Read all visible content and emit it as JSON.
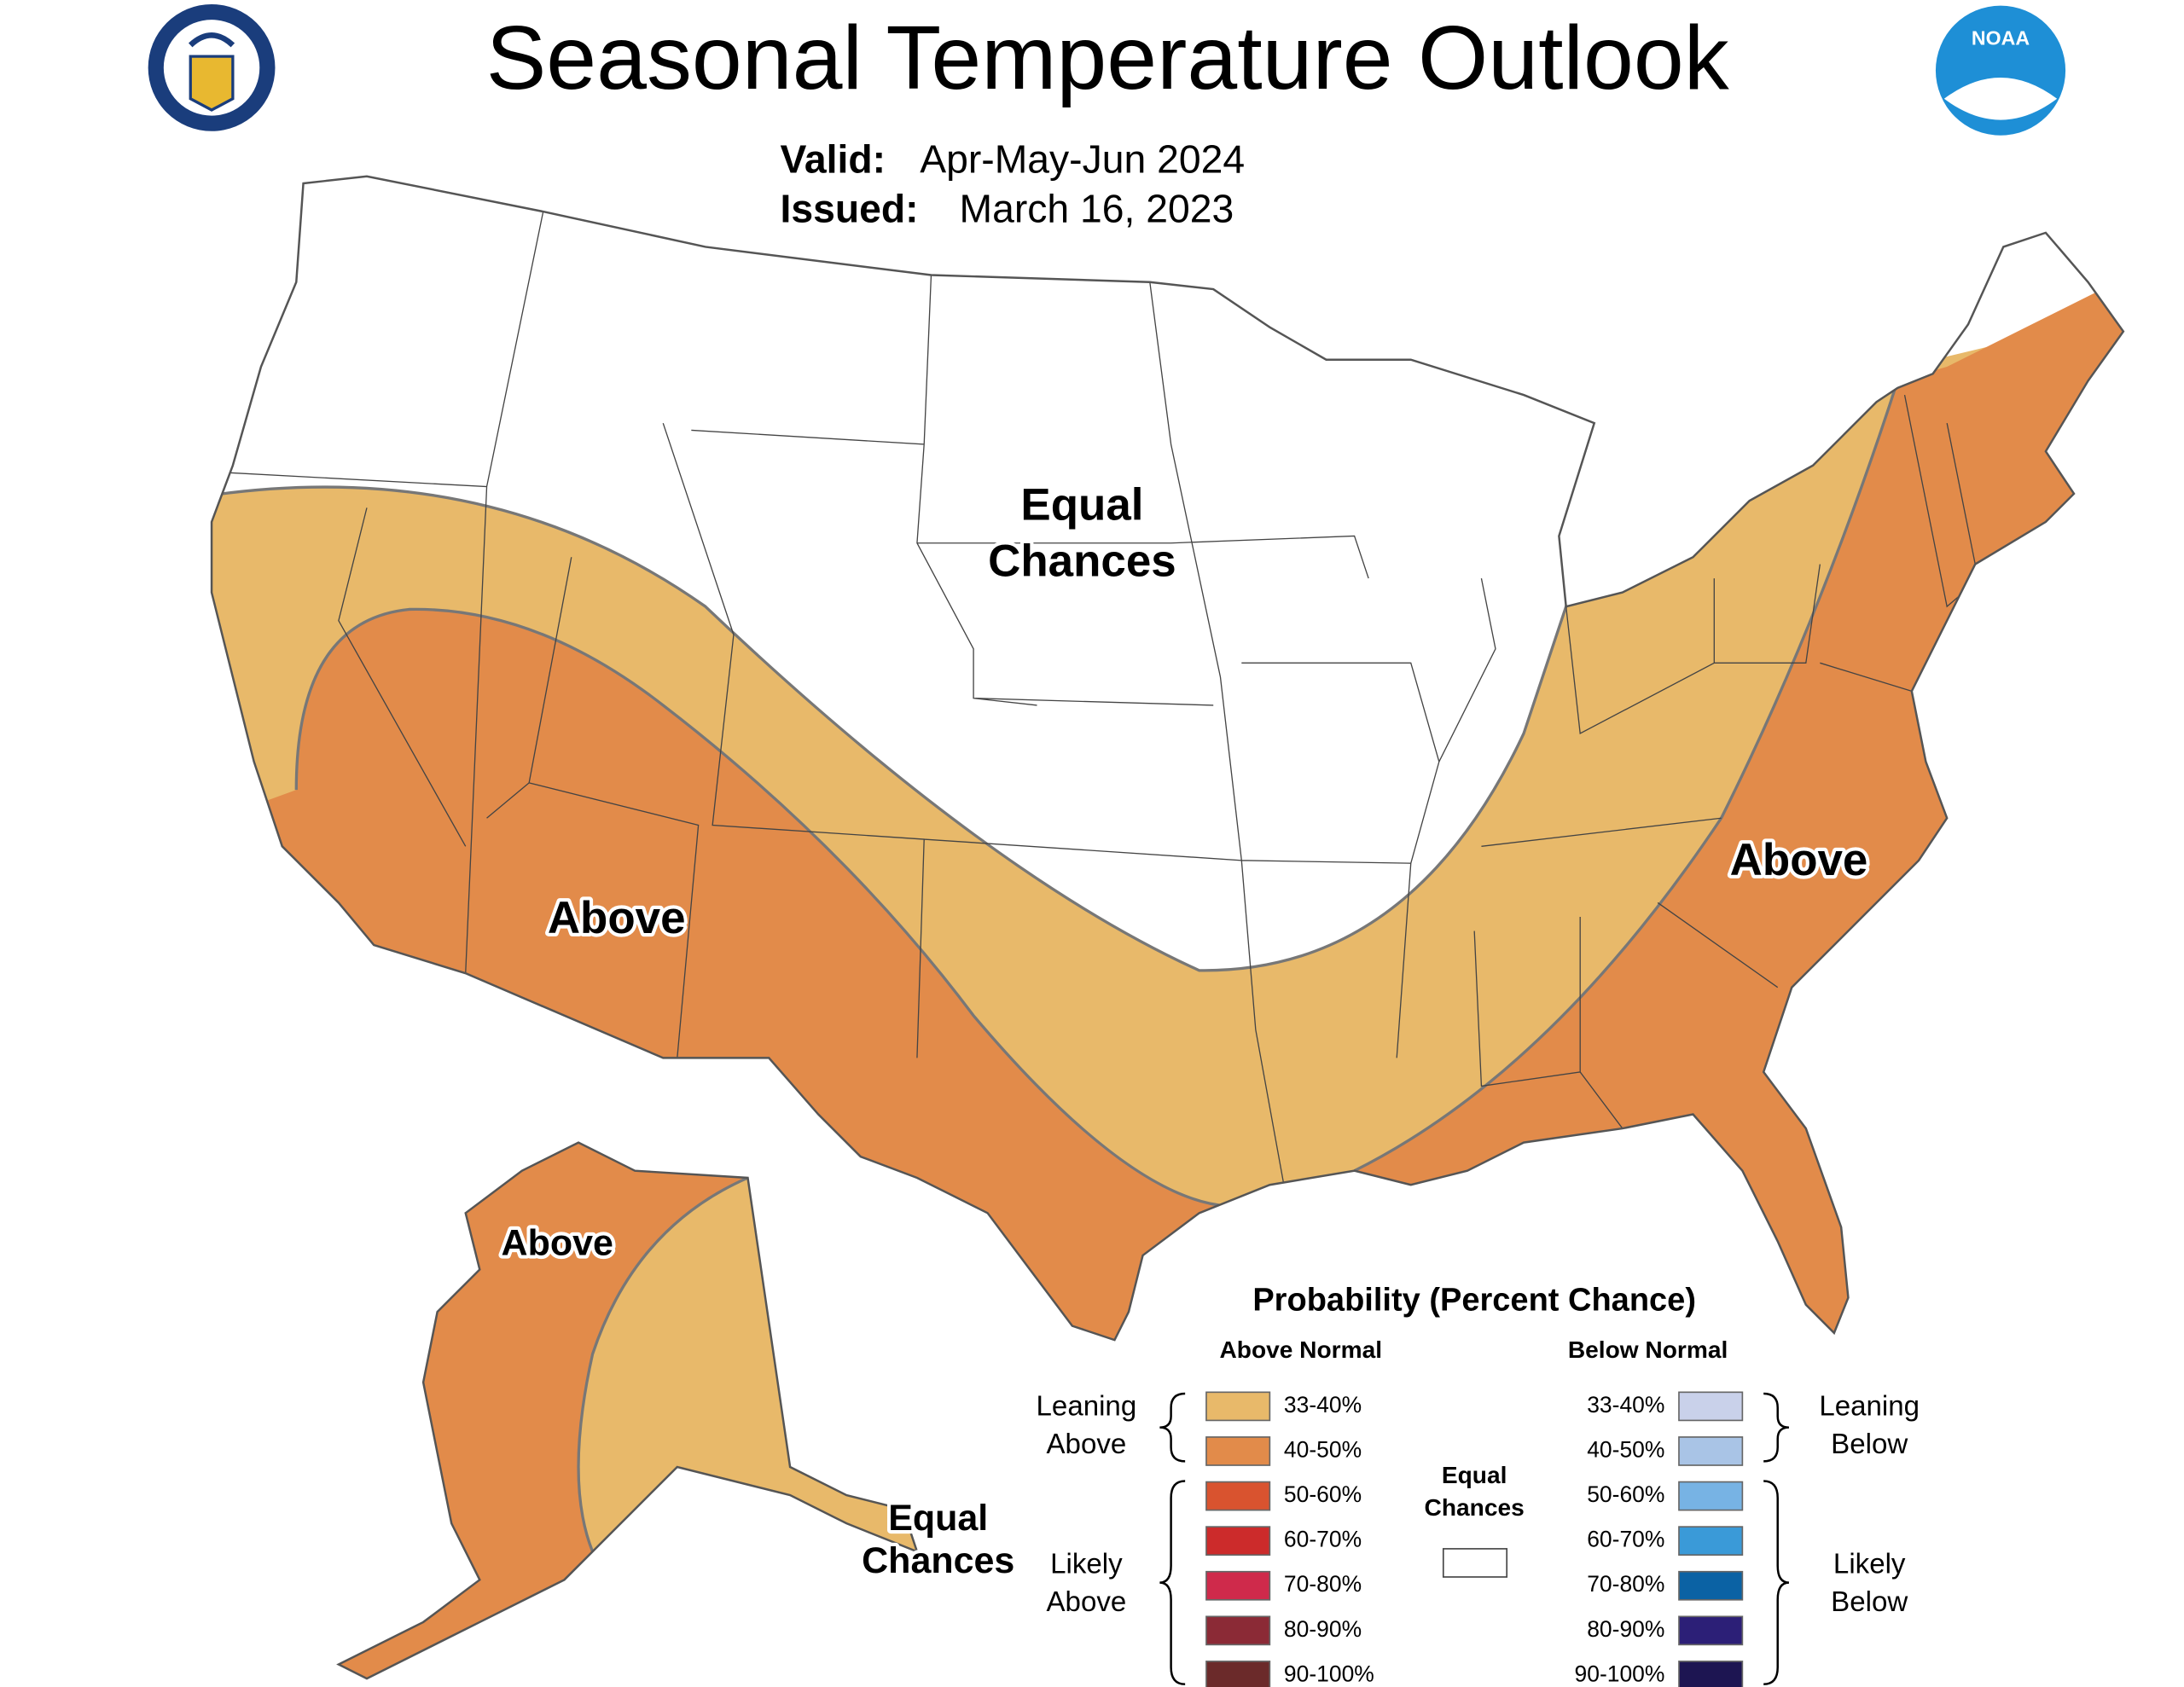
{
  "header": {
    "title": "Seasonal Temperature Outlook",
    "valid_label": "Valid:",
    "valid": "Apr-May-Jun 2024",
    "issued_label": "Issued:",
    "issued": "March 16, 2023"
  },
  "logos": {
    "noaa": "NOAA"
  },
  "map": {
    "labels": [
      {
        "lines": [
          "Equal",
          "Chances"
        ]
      },
      {
        "lines": [
          "Above"
        ]
      },
      {
        "lines": [
          "Above"
        ]
      },
      {
        "lines": [
          "Above"
        ]
      },
      {
        "lines": [
          "Equal",
          "Chances"
        ]
      }
    ]
  },
  "legend": {
    "title": "Probability (Percent Chance)",
    "above": {
      "header": "Above Normal",
      "items": [
        {
          "label": "33-40%",
          "color": "#e8b96a"
        },
        {
          "label": "40-50%",
          "color": "#e28b4a"
        },
        {
          "label": "50-60%",
          "color": "#d9532f"
        },
        {
          "label": "60-70%",
          "color": "#cc2b2b"
        },
        {
          "label": "70-80%",
          "color": "#cf2a4b"
        },
        {
          "label": "80-90%",
          "color": "#8b2a36"
        },
        {
          "label": "90-100%",
          "color": "#6b2a2a"
        }
      ]
    },
    "below": {
      "header": "Below Normal",
      "items": [
        {
          "label": "33-40%",
          "color": "#c9d1ea"
        },
        {
          "label": "40-50%",
          "color": "#a9c4e6"
        },
        {
          "label": "50-60%",
          "color": "#77b3e4"
        },
        {
          "label": "60-70%",
          "color": "#3a9ad8"
        },
        {
          "label": "70-80%",
          "color": "#0b62a4"
        },
        {
          "label": "80-90%",
          "color": "#2c1f77"
        },
        {
          "label": "90-100%",
          "color": "#1d1552"
        }
      ]
    },
    "groups": [
      {
        "lines": [
          "Leaning",
          "Above"
        ]
      },
      {
        "lines": [
          "Likely",
          "Above"
        ]
      },
      {
        "lines": [
          "Leaning",
          "Below"
        ]
      },
      {
        "lines": [
          "Likely",
          "Below"
        ]
      }
    ],
    "equal": {
      "lines": [
        "Equal",
        "Chances"
      ],
      "color": "#ffffff"
    }
  }
}
